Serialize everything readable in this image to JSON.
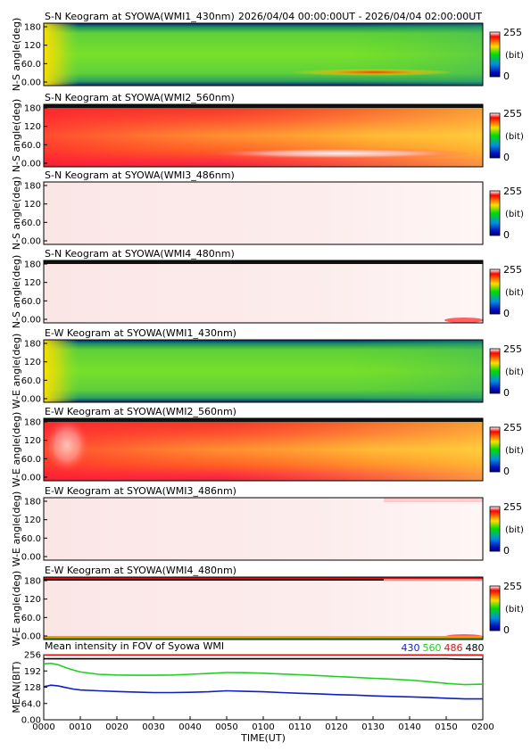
{
  "header": {
    "time_range": "2026/04/04 00:00:00UT - 2026/04/04 02:00:00UT"
  },
  "keograms": [
    {
      "title": "S-N Keogram at SYOWA(WMI1_430nm)",
      "ylabel": "N-S angle(deg)",
      "yticks": [
        "180",
        "120",
        "60.0",
        "0.00"
      ],
      "colorbar_max": "255",
      "colorbar_unit": "(bit)",
      "colorbar_min": "0",
      "style": "green"
    },
    {
      "title": "S-N Keogram at SYOWA(WMI2_560nm)",
      "ylabel": "N-S angle(deg)",
      "yticks": [
        "180",
        "120",
        "60.0",
        "0.00"
      ],
      "colorbar_max": "255",
      "colorbar_unit": "(bit)",
      "colorbar_min": "0",
      "style": "red"
    },
    {
      "title": "S-N Keogram at SYOWA(WMI3_486nm)",
      "ylabel": "N-S angle(deg)",
      "yticks": [
        "180",
        "120",
        "60.0",
        "0.00"
      ],
      "colorbar_max": "255",
      "colorbar_unit": "(bit)",
      "colorbar_min": "0",
      "style": "white"
    },
    {
      "title": "S-N Keogram at SYOWA(WMI4_480nm)",
      "ylabel": "N-S angle(deg)",
      "yticks": [
        "180",
        "120",
        "60.0",
        "0.00"
      ],
      "colorbar_max": "255",
      "colorbar_unit": "(bit)",
      "colorbar_min": "0",
      "style": "white"
    },
    {
      "title": "E-W Keogram at SYOWA(WMI1_430nm)",
      "ylabel": "W-E angle(deg)",
      "yticks": [
        "180",
        "120",
        "60.0",
        "0.00"
      ],
      "colorbar_max": "255",
      "colorbar_unit": "(bit)",
      "colorbar_min": "0",
      "style": "green"
    },
    {
      "title": "E-W Keogram at SYOWA(WMI2_560nm)",
      "ylabel": "W-E angle(deg)",
      "yticks": [
        "180",
        "120",
        "60.0",
        "0.00"
      ],
      "colorbar_max": "255",
      "colorbar_unit": "(bit)",
      "colorbar_min": "0",
      "style": "red"
    },
    {
      "title": "E-W Keogram at SYOWA(WMI3_486nm)",
      "ylabel": "W-E angle(deg)",
      "yticks": [
        "180",
        "120",
        "60.0",
        "0.00"
      ],
      "colorbar_max": "255",
      "colorbar_unit": "(bit)",
      "colorbar_min": "0",
      "style": "white"
    },
    {
      "title": "E-W Keogram at SYOWA(WMI4_480nm)",
      "ylabel": "W-E angle(deg)",
      "yticks": [
        "180",
        "120",
        "60.0",
        "0.00"
      ],
      "colorbar_max": "255",
      "colorbar_unit": "(bit)",
      "colorbar_min": "0",
      "style": "white"
    }
  ],
  "colors": {
    "series_430": "#1020c0",
    "series_560": "#20d020",
    "series_486": "#e01010",
    "series_480": "#000000",
    "background": "#ffffff"
  },
  "chart_data": {
    "type": "line",
    "title": "Mean intensity in FOV of Syowa WMI",
    "xlabel": "TIME(UT)",
    "ylabel": "MEAN(BIT)",
    "xlim": [
      0,
      120
    ],
    "ylim": [
      0,
      256
    ],
    "x_tick_labels": [
      "0000",
      "0010",
      "0020",
      "0030",
      "0040",
      "0050",
      "0100",
      "0110",
      "0120",
      "0130",
      "0140",
      "0150",
      "0200"
    ],
    "y_tick_labels": [
      "256",
      "192",
      "128",
      "64.0",
      "0.00"
    ],
    "y_tick_values": [
      256,
      192,
      128,
      64,
      0
    ],
    "x": [
      0,
      2,
      4,
      6,
      8,
      10,
      15,
      20,
      25,
      30,
      35,
      40,
      45,
      50,
      55,
      60,
      65,
      70,
      75,
      80,
      85,
      90,
      95,
      100,
      105,
      110,
      115,
      120
    ],
    "series": [
      {
        "name": "430",
        "color": "#1020c0",
        "values": [
          130,
          136,
          133,
          127,
          121,
          117,
          114,
          111,
          109,
          107,
          107,
          108,
          110,
          114,
          112,
          110,
          107,
          104,
          102,
          99,
          97,
          94,
          92,
          90,
          88,
          85,
          82,
          82
        ]
      },
      {
        "name": "560",
        "color": "#20d020",
        "values": [
          220,
          222,
          216,
          205,
          196,
          188,
          179,
          176,
          175,
          175,
          176,
          179,
          182,
          186,
          185,
          183,
          180,
          177,
          174,
          170,
          167,
          163,
          160,
          156,
          150,
          143,
          138,
          140
        ]
      },
      {
        "name": "486",
        "color": "#e01010",
        "values": [
          255,
          255,
          255,
          255,
          255,
          255,
          255,
          255,
          255,
          255,
          255,
          255,
          255,
          255,
          255,
          255,
          255,
          255,
          255,
          255,
          255,
          255,
          255,
          255,
          255,
          255,
          255,
          255
        ]
      },
      {
        "name": "480",
        "color": "#000000",
        "values": [
          240,
          240,
          240,
          240,
          240,
          240,
          240,
          240,
          240,
          240,
          240,
          240,
          240,
          240,
          240,
          240,
          240,
          240,
          240,
          240,
          240,
          240,
          240,
          240,
          240,
          240,
          238,
          238
        ]
      }
    ]
  }
}
